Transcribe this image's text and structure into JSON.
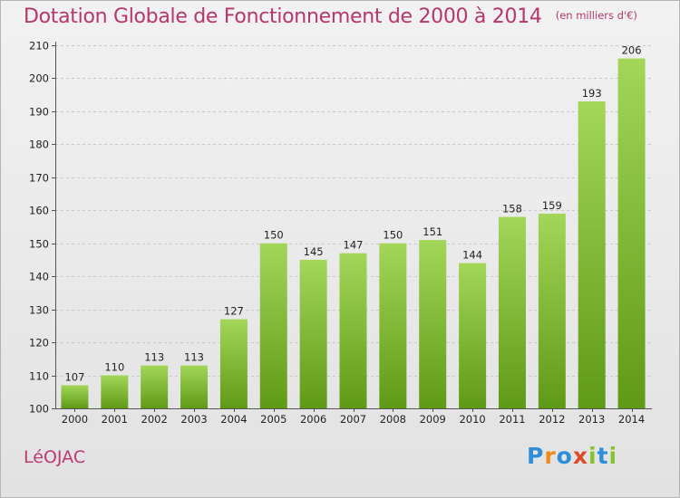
{
  "header": {
    "title": "Dotation Globale de Fonctionnement de 2000 à 2014",
    "subtitle": "(en milliers d'€)"
  },
  "footer": {
    "commune": "LéOJAC",
    "brand_letters": [
      "P",
      "r",
      "o",
      "x",
      "i",
      "t",
      "i"
    ]
  },
  "colors": {
    "title": "#b8366b",
    "bar_light": "#a3d659",
    "bar_dark": "#5f9a16",
    "grid": "#c8c8c8",
    "axis_text": "#222222"
  },
  "chart_data": {
    "type": "bar",
    "categories": [
      "2000",
      "2001",
      "2002",
      "2003",
      "2004",
      "2005",
      "2006",
      "2007",
      "2008",
      "2009",
      "2010",
      "2011",
      "2012",
      "2013",
      "2014"
    ],
    "values": [
      107,
      110,
      113,
      113,
      127,
      150,
      145,
      147,
      150,
      151,
      144,
      158,
      159,
      193,
      206
    ],
    "data_labels": [
      "107",
      "110",
      "113",
      "113",
      "127",
      "150",
      "145",
      "147",
      "150",
      "151",
      "144",
      "158",
      "159",
      "193",
      "206"
    ],
    "yticks": [
      100,
      110,
      120,
      130,
      140,
      150,
      160,
      170,
      180,
      190,
      200,
      210
    ],
    "ytick_labels": [
      "100",
      "110",
      "120",
      "130",
      "140",
      "150",
      "160",
      "170",
      "180",
      "190",
      "200",
      "210"
    ],
    "ylim": [
      100,
      210
    ],
    "grid": true,
    "legend": false
  }
}
